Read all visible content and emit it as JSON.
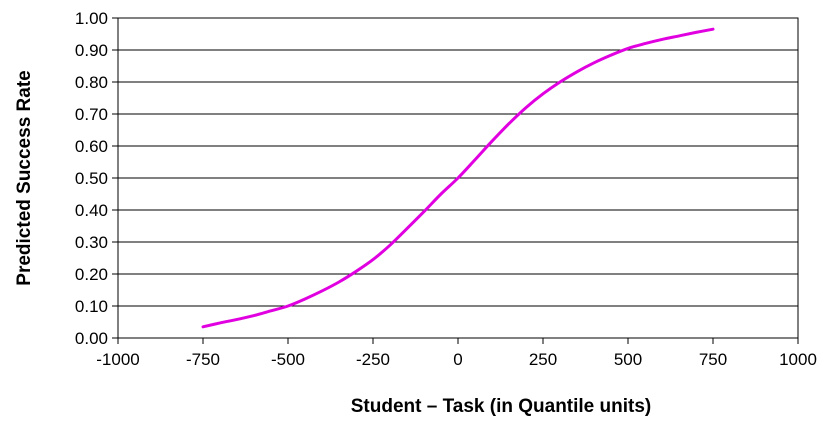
{
  "chart_data": {
    "type": "line",
    "title": "",
    "xlabel": "Student – Task (in Quantile units)",
    "ylabel": "Predicted Success Rate",
    "xlim": [
      -1000,
      1000
    ],
    "ylim": [
      0,
      1
    ],
    "x_ticks": [
      "-1000",
      "-750",
      "-500",
      "-250",
      "0",
      "250",
      "500",
      "750",
      "1000"
    ],
    "y_ticks": [
      "0.00",
      "0.10",
      "0.20",
      "0.30",
      "0.40",
      "0.50",
      "0.60",
      "0.70",
      "0.80",
      "0.90",
      "1.00"
    ],
    "grid": "horizontal",
    "legend": "none",
    "series": [
      {
        "color": "#e000e0",
        "x": [
          -750,
          -700,
          -650,
          -600,
          -550,
          -500,
          -450,
          -400,
          -350,
          -300,
          -250,
          -200,
          -150,
          -100,
          -50,
          0,
          50,
          100,
          150,
          200,
          250,
          300,
          350,
          400,
          450,
          500,
          550,
          600,
          650,
          700,
          750
        ],
        "y": [
          0.035,
          0.047,
          0.058,
          0.07,
          0.085,
          0.1,
          0.122,
          0.147,
          0.175,
          0.208,
          0.245,
          0.29,
          0.342,
          0.395,
          0.45,
          0.5,
          0.557,
          0.615,
          0.67,
          0.72,
          0.763,
          0.8,
          0.832,
          0.86,
          0.884,
          0.905,
          0.92,
          0.933,
          0.944,
          0.955,
          0.965
        ]
      }
    ]
  }
}
